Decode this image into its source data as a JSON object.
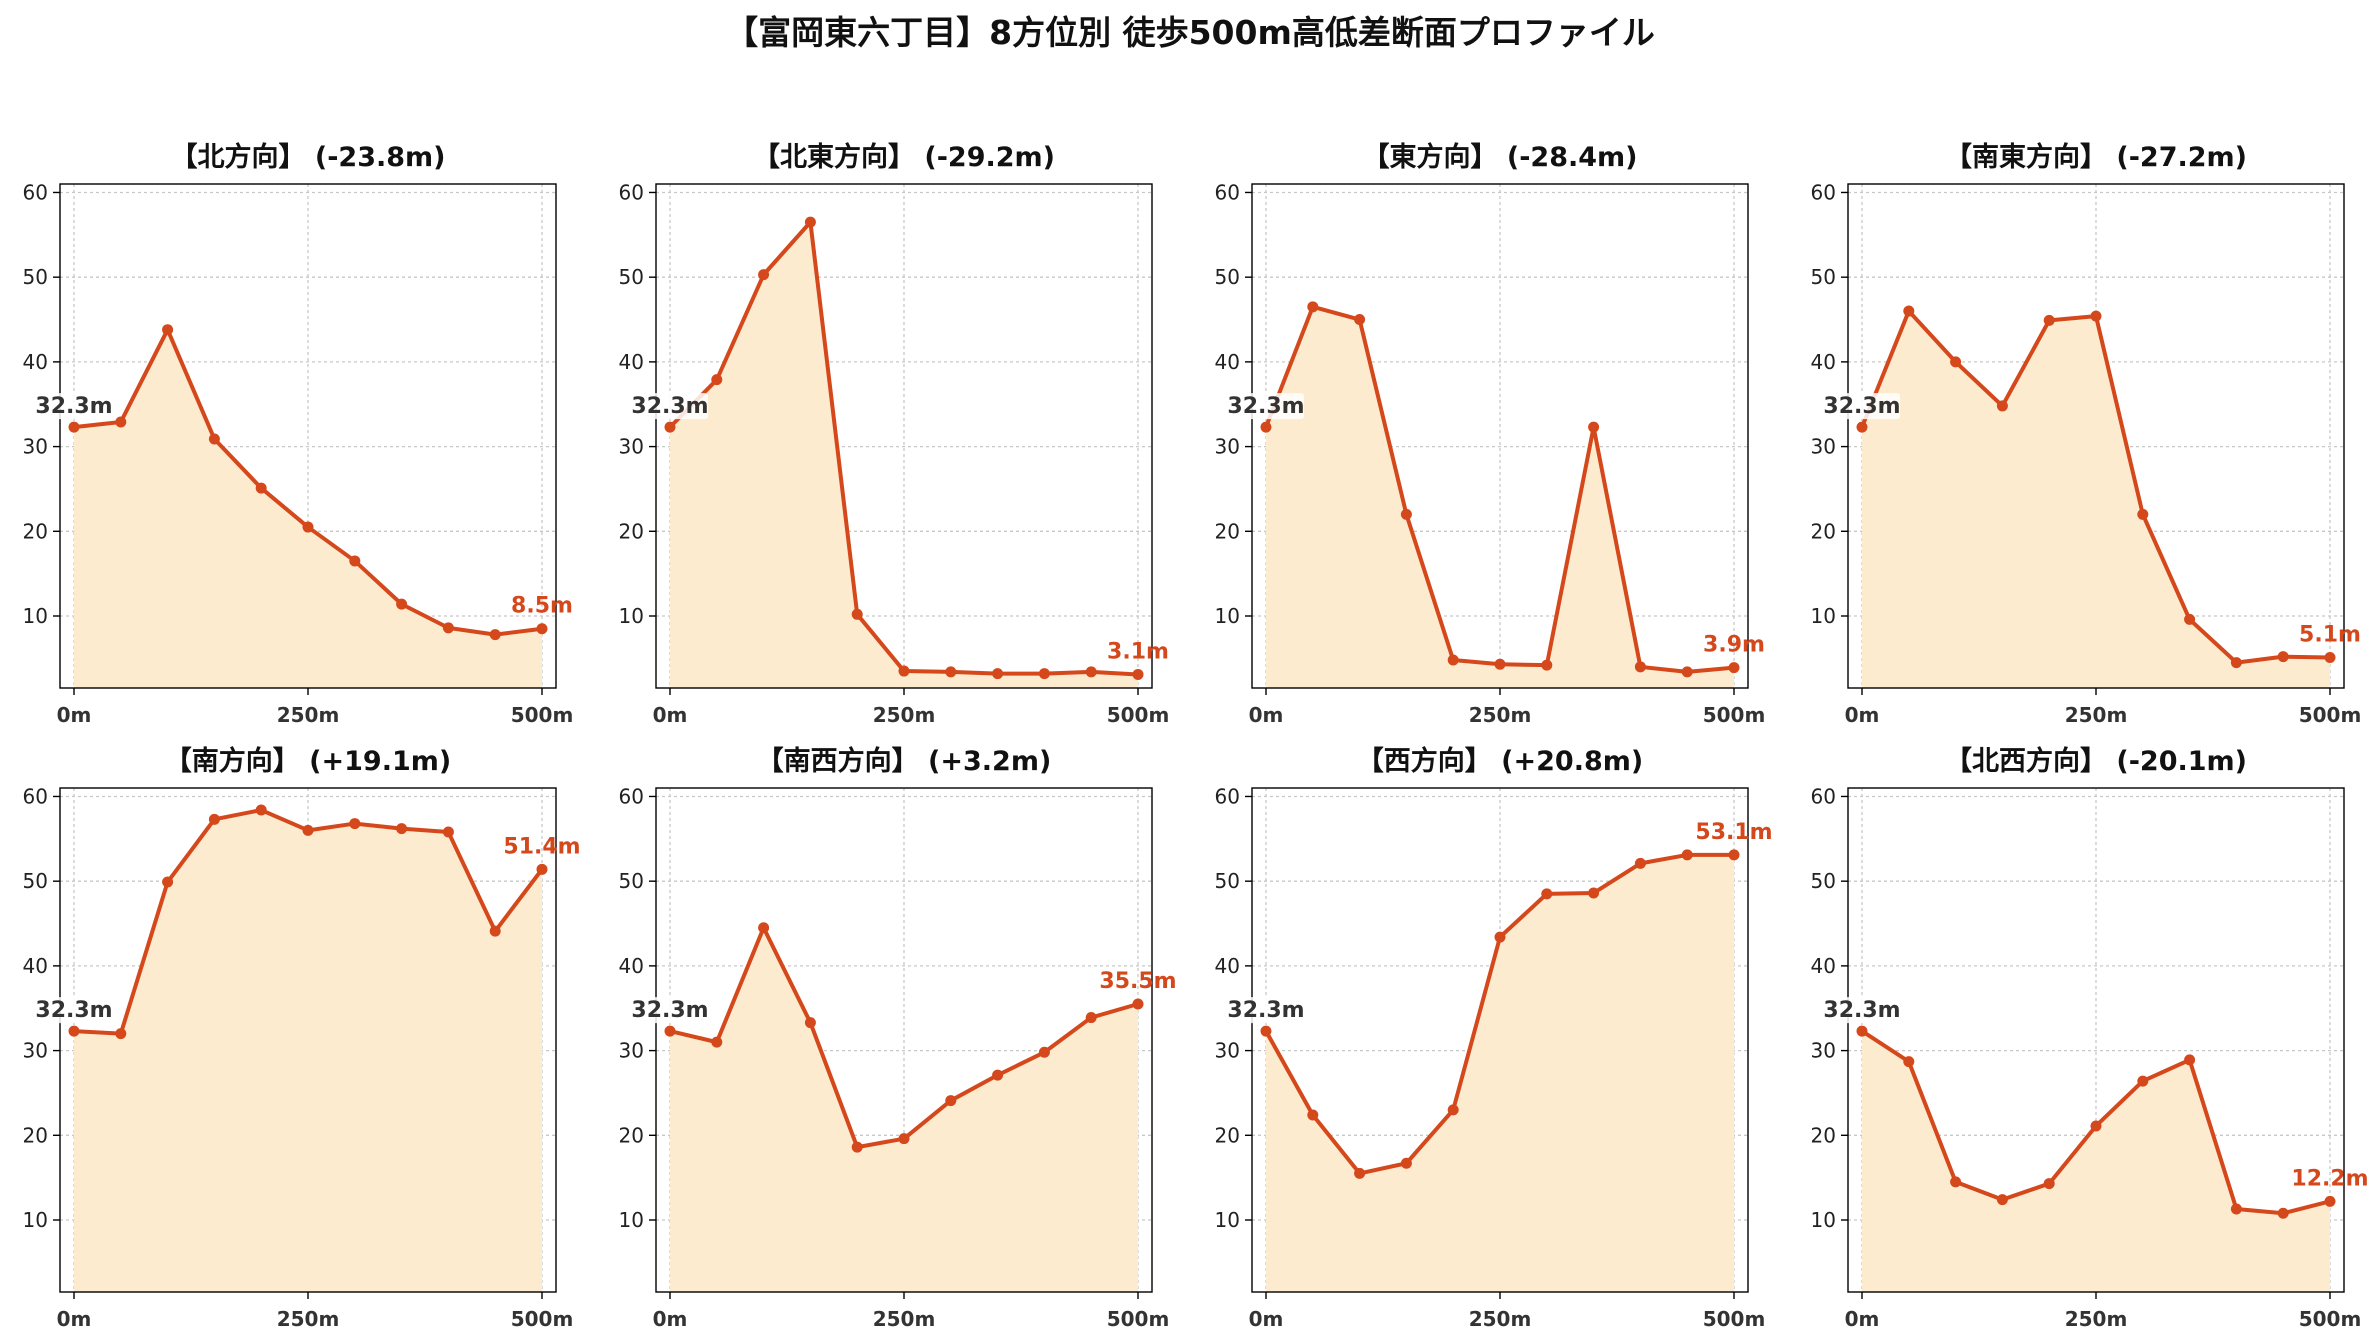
{
  "title": "【富岡東六丁目】8方位別 徒歩500m高低差断面プロファイル",
  "colors": {
    "line": "#d4481b",
    "fill": "#fdebd0",
    "grid": "#c8c8c8"
  },
  "chart_data": [
    {
      "type": "area",
      "title": "【北方向】 (-23.8m)",
      "x": [
        0,
        50,
        100,
        150,
        200,
        250,
        300,
        350,
        400,
        450,
        500
      ],
      "y": [
        32.3,
        32.9,
        43.8,
        30.9,
        25.1,
        20.5,
        16.5,
        11.4,
        8.6,
        7.8,
        8.5
      ],
      "xticks": [
        "0m",
        "250m",
        "500m"
      ],
      "yticks": [
        10,
        20,
        30,
        40,
        50,
        60
      ],
      "ylim": [
        1.5,
        61
      ],
      "start_label": "32.3m",
      "end_label": "8.5m"
    },
    {
      "type": "area",
      "title": "【北東方向】 (-29.2m)",
      "x": [
        0,
        50,
        100,
        150,
        200,
        250,
        300,
        350,
        400,
        450,
        500
      ],
      "y": [
        32.3,
        37.9,
        50.3,
        56.5,
        10.2,
        3.5,
        3.4,
        3.2,
        3.2,
        3.4,
        3.1
      ],
      "xticks": [
        "0m",
        "250m",
        "500m"
      ],
      "yticks": [
        10,
        20,
        30,
        40,
        50,
        60
      ],
      "ylim": [
        1.5,
        61
      ],
      "start_label": "32.3m",
      "end_label": "3.1m"
    },
    {
      "type": "area",
      "title": "【東方向】 (-28.4m)",
      "x": [
        0,
        50,
        100,
        150,
        200,
        250,
        300,
        350,
        400,
        450,
        500
      ],
      "y": [
        32.3,
        46.5,
        45.0,
        22.0,
        4.8,
        4.3,
        4.2,
        32.3,
        4.0,
        3.4,
        3.9
      ],
      "xticks": [
        "0m",
        "250m",
        "500m"
      ],
      "yticks": [
        10,
        20,
        30,
        40,
        50,
        60
      ],
      "ylim": [
        1.5,
        61
      ],
      "start_label": "32.3m",
      "end_label": "3.9m"
    },
    {
      "type": "area",
      "title": "【南東方向】 (-27.2m)",
      "x": [
        0,
        50,
        100,
        150,
        200,
        250,
        300,
        350,
        400,
        450,
        500
      ],
      "y": [
        32.3,
        46.0,
        40.0,
        34.8,
        44.9,
        45.4,
        22.0,
        9.6,
        4.5,
        5.2,
        5.1
      ],
      "xticks": [
        "0m",
        "250m",
        "500m"
      ],
      "yticks": [
        10,
        20,
        30,
        40,
        50,
        60
      ],
      "ylim": [
        1.5,
        61
      ],
      "start_label": "32.3m",
      "end_label": "5.1m"
    },
    {
      "type": "area",
      "title": "【南方向】 (+19.1m)",
      "x": [
        0,
        50,
        100,
        150,
        200,
        250,
        300,
        350,
        400,
        450,
        500
      ],
      "y": [
        32.3,
        32.0,
        49.9,
        57.3,
        58.4,
        56.0,
        56.8,
        56.2,
        55.8,
        44.1,
        51.4
      ],
      "xticks": [
        "0m",
        "250m",
        "500m"
      ],
      "yticks": [
        10,
        20,
        30,
        40,
        50,
        60
      ],
      "ylim": [
        1.5,
        61
      ],
      "start_label": "32.3m",
      "end_label": "51.4m"
    },
    {
      "type": "area",
      "title": "【南西方向】 (+3.2m)",
      "x": [
        0,
        50,
        100,
        150,
        200,
        250,
        300,
        350,
        400,
        450,
        500
      ],
      "y": [
        32.3,
        31.0,
        44.5,
        33.3,
        18.6,
        19.6,
        24.1,
        27.1,
        29.8,
        33.9,
        35.5
      ],
      "xticks": [
        "0m",
        "250m",
        "500m"
      ],
      "yticks": [
        10,
        20,
        30,
        40,
        50,
        60
      ],
      "ylim": [
        1.5,
        61
      ],
      "start_label": "32.3m",
      "end_label": "35.5m"
    },
    {
      "type": "area",
      "title": "【西方向】 (+20.8m)",
      "x": [
        0,
        50,
        100,
        150,
        200,
        250,
        300,
        350,
        400,
        450,
        500
      ],
      "y": [
        32.3,
        22.4,
        15.5,
        16.7,
        23.0,
        43.4,
        48.5,
        48.6,
        52.1,
        53.1,
        53.1
      ],
      "xticks": [
        "0m",
        "250m",
        "500m"
      ],
      "yticks": [
        10,
        20,
        30,
        40,
        50,
        60
      ],
      "ylim": [
        1.5,
        61
      ],
      "start_label": "32.3m",
      "end_label": "53.1m"
    },
    {
      "type": "area",
      "title": "【北西方向】 (-20.1m)",
      "x": [
        0,
        50,
        100,
        150,
        200,
        250,
        300,
        350,
        400,
        450,
        500
      ],
      "y": [
        32.3,
        28.7,
        14.5,
        12.4,
        14.3,
        21.1,
        26.4,
        28.9,
        11.3,
        10.8,
        12.2
      ],
      "xticks": [
        "0m",
        "250m",
        "500m"
      ],
      "yticks": [
        10,
        20,
        30,
        40,
        50,
        60
      ],
      "ylim": [
        1.5,
        61
      ],
      "start_label": "32.3m",
      "end_label": "12.2m"
    }
  ]
}
